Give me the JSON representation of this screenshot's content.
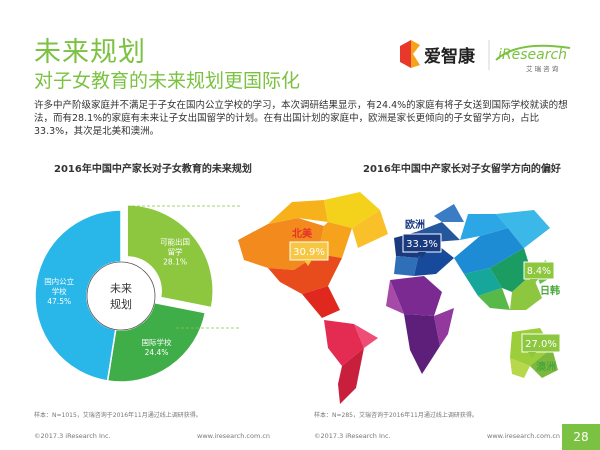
{
  "section_title": "未来规划",
  "subtitle": "对子女教育的未来规划更国际化",
  "body_text": "许多中产阶级家庭并不满足于子女在国内公立学校的学习，本次调研结果显示，有24.4%的家庭有将子女送到国际学校就读的想法，而有28.1%的家庭有未来让子女出国留学的计划。在有出国计划的家庭中，欧洲是家长更倾向的子女留学方向，占比33.3%，其次是北美和澳洲。",
  "logo": {
    "brand": "爱智康",
    "partner": "iResearch",
    "partner_cn": "艾 瑞 咨 询"
  },
  "chart_data": [
    {
      "type": "pie",
      "title": "2016年中国中产家长对子女教育的未来规划",
      "center_label": "未来规划",
      "categories": [
        "可能出国留学",
        "国际学校",
        "国内公立学校"
      ],
      "values": [
        28.1,
        24.4,
        47.5
      ],
      "display_labels": [
        "28.1%",
        "24.4%",
        "47.5%"
      ],
      "colors": [
        "#8dc63f",
        "#3fae49",
        "#29b6e8"
      ]
    },
    {
      "type": "map",
      "title": "2016年中国中产家长对子女留学方向的偏好",
      "regions": [
        {
          "name": "北美",
          "value": 30.9,
          "label": "30.9%"
        },
        {
          "name": "欧洲",
          "value": 33.3,
          "label": "33.3%"
        },
        {
          "name": "日韩",
          "value": 8.4,
          "label": "8.4%"
        },
        {
          "name": "澳洲",
          "value": 27.0,
          "label": "27.0%"
        }
      ]
    }
  ],
  "notes": {
    "left": "样本：N=1015，艾瑞咨询于2016年11月通过线上调研获得。",
    "right": "样本：N=285，艾瑞咨询于2016年11月通过线上调研获得。"
  },
  "footer": {
    "left_copyright": "©2017.3 iResearch Inc.",
    "left_url": "www.iresearch.com.cn",
    "right_copyright": "©2017.3 iResearch Inc.",
    "right_url": "www.iresearch.com.cn"
  },
  "page_number": "28"
}
